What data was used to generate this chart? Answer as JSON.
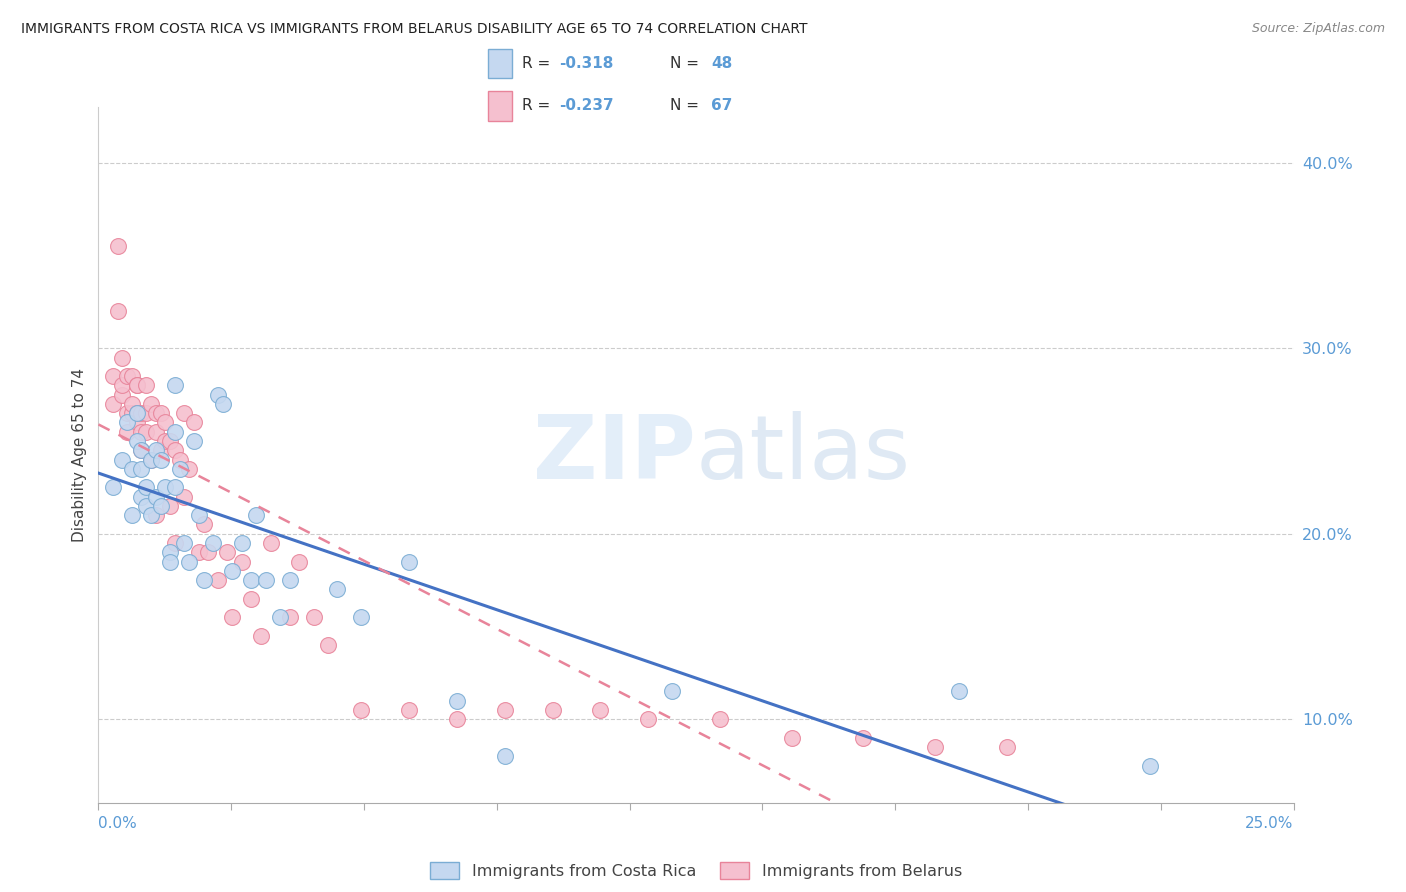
{
  "title": "IMMIGRANTS FROM COSTA RICA VS IMMIGRANTS FROM BELARUS DISABILITY AGE 65 TO 74 CORRELATION CHART",
  "source": "Source: ZipAtlas.com",
  "ylabel": "Disability Age 65 to 74",
  "yaxis_ticks": [
    0.1,
    0.2,
    0.3,
    0.4
  ],
  "yaxis_labels": [
    "10.0%",
    "20.0%",
    "30.0%",
    "40.0%"
  ],
  "xlim": [
    0.0,
    0.25
  ],
  "ylim": [
    0.055,
    0.43
  ],
  "watermark_zip": "ZIP",
  "watermark_atlas": "atlas",
  "costa_rica_color": "#c5d8f0",
  "costa_rica_edge": "#7badd4",
  "belarus_color": "#f5c0cf",
  "belarus_edge": "#e8849a",
  "trend_costa_rica_color": "#4472c4",
  "trend_belarus_color": "#e8849a",
  "trend_belarus_style": "--",
  "costa_rica_r": "-0.318",
  "costa_rica_n": "48",
  "belarus_r": "-0.237",
  "belarus_n": "67",
  "costa_rica_x": [
    0.003,
    0.005,
    0.006,
    0.007,
    0.007,
    0.008,
    0.008,
    0.009,
    0.009,
    0.009,
    0.01,
    0.01,
    0.011,
    0.011,
    0.012,
    0.012,
    0.013,
    0.013,
    0.014,
    0.015,
    0.015,
    0.016,
    0.016,
    0.016,
    0.017,
    0.018,
    0.019,
    0.02,
    0.021,
    0.022,
    0.024,
    0.025,
    0.026,
    0.028,
    0.03,
    0.032,
    0.033,
    0.035,
    0.038,
    0.04,
    0.05,
    0.055,
    0.065,
    0.075,
    0.085,
    0.12,
    0.18,
    0.22
  ],
  "costa_rica_y": [
    0.225,
    0.24,
    0.26,
    0.21,
    0.235,
    0.265,
    0.25,
    0.245,
    0.22,
    0.235,
    0.215,
    0.225,
    0.24,
    0.21,
    0.245,
    0.22,
    0.24,
    0.215,
    0.225,
    0.19,
    0.185,
    0.28,
    0.255,
    0.225,
    0.235,
    0.195,
    0.185,
    0.25,
    0.21,
    0.175,
    0.195,
    0.275,
    0.27,
    0.18,
    0.195,
    0.175,
    0.21,
    0.175,
    0.155,
    0.175,
    0.17,
    0.155,
    0.185,
    0.11,
    0.08,
    0.115,
    0.115,
    0.075
  ],
  "belarus_x": [
    0.003,
    0.003,
    0.004,
    0.004,
    0.005,
    0.005,
    0.005,
    0.006,
    0.006,
    0.006,
    0.007,
    0.007,
    0.007,
    0.008,
    0.008,
    0.008,
    0.008,
    0.009,
    0.009,
    0.009,
    0.01,
    0.01,
    0.01,
    0.011,
    0.011,
    0.012,
    0.012,
    0.012,
    0.013,
    0.013,
    0.014,
    0.014,
    0.015,
    0.015,
    0.016,
    0.016,
    0.017,
    0.018,
    0.018,
    0.019,
    0.02,
    0.021,
    0.022,
    0.023,
    0.025,
    0.027,
    0.028,
    0.03,
    0.032,
    0.034,
    0.036,
    0.04,
    0.042,
    0.045,
    0.048,
    0.055,
    0.065,
    0.075,
    0.085,
    0.095,
    0.105,
    0.115,
    0.13,
    0.145,
    0.16,
    0.175,
    0.19
  ],
  "belarus_y": [
    0.285,
    0.27,
    0.355,
    0.32,
    0.295,
    0.275,
    0.28,
    0.285,
    0.265,
    0.255,
    0.285,
    0.265,
    0.27,
    0.28,
    0.28,
    0.265,
    0.26,
    0.255,
    0.265,
    0.245,
    0.28,
    0.265,
    0.255,
    0.27,
    0.24,
    0.265,
    0.255,
    0.21,
    0.265,
    0.245,
    0.26,
    0.25,
    0.25,
    0.215,
    0.245,
    0.195,
    0.24,
    0.265,
    0.22,
    0.235,
    0.26,
    0.19,
    0.205,
    0.19,
    0.175,
    0.19,
    0.155,
    0.185,
    0.165,
    0.145,
    0.195,
    0.155,
    0.185,
    0.155,
    0.14,
    0.105,
    0.105,
    0.1,
    0.105,
    0.105,
    0.105,
    0.1,
    0.1,
    0.09,
    0.09,
    0.085,
    0.085
  ]
}
